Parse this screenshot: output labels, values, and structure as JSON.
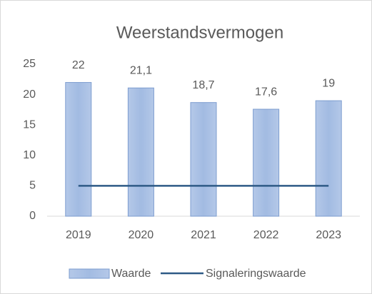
{
  "chart_data": {
    "type": "bar",
    "title": "Weerstandsvermogen",
    "categories": [
      "2019",
      "2020",
      "2021",
      "2022",
      "2023"
    ],
    "series": [
      {
        "name": "Waarde",
        "type": "bar",
        "color": "#a7bfe4",
        "values": [
          22,
          21.1,
          18.7,
          17.6,
          19
        ],
        "value_labels": [
          "22",
          "21,1",
          "18,7",
          "17,6",
          "19"
        ]
      },
      {
        "name": "Signaleringswaarde",
        "type": "line",
        "color": "#2e5a86",
        "values": [
          5,
          5,
          5,
          5,
          5
        ]
      }
    ],
    "ylim": [
      0,
      25
    ],
    "yticks": [
      0,
      5,
      10,
      15,
      20,
      25
    ],
    "grid": false,
    "legend": "bottom"
  }
}
